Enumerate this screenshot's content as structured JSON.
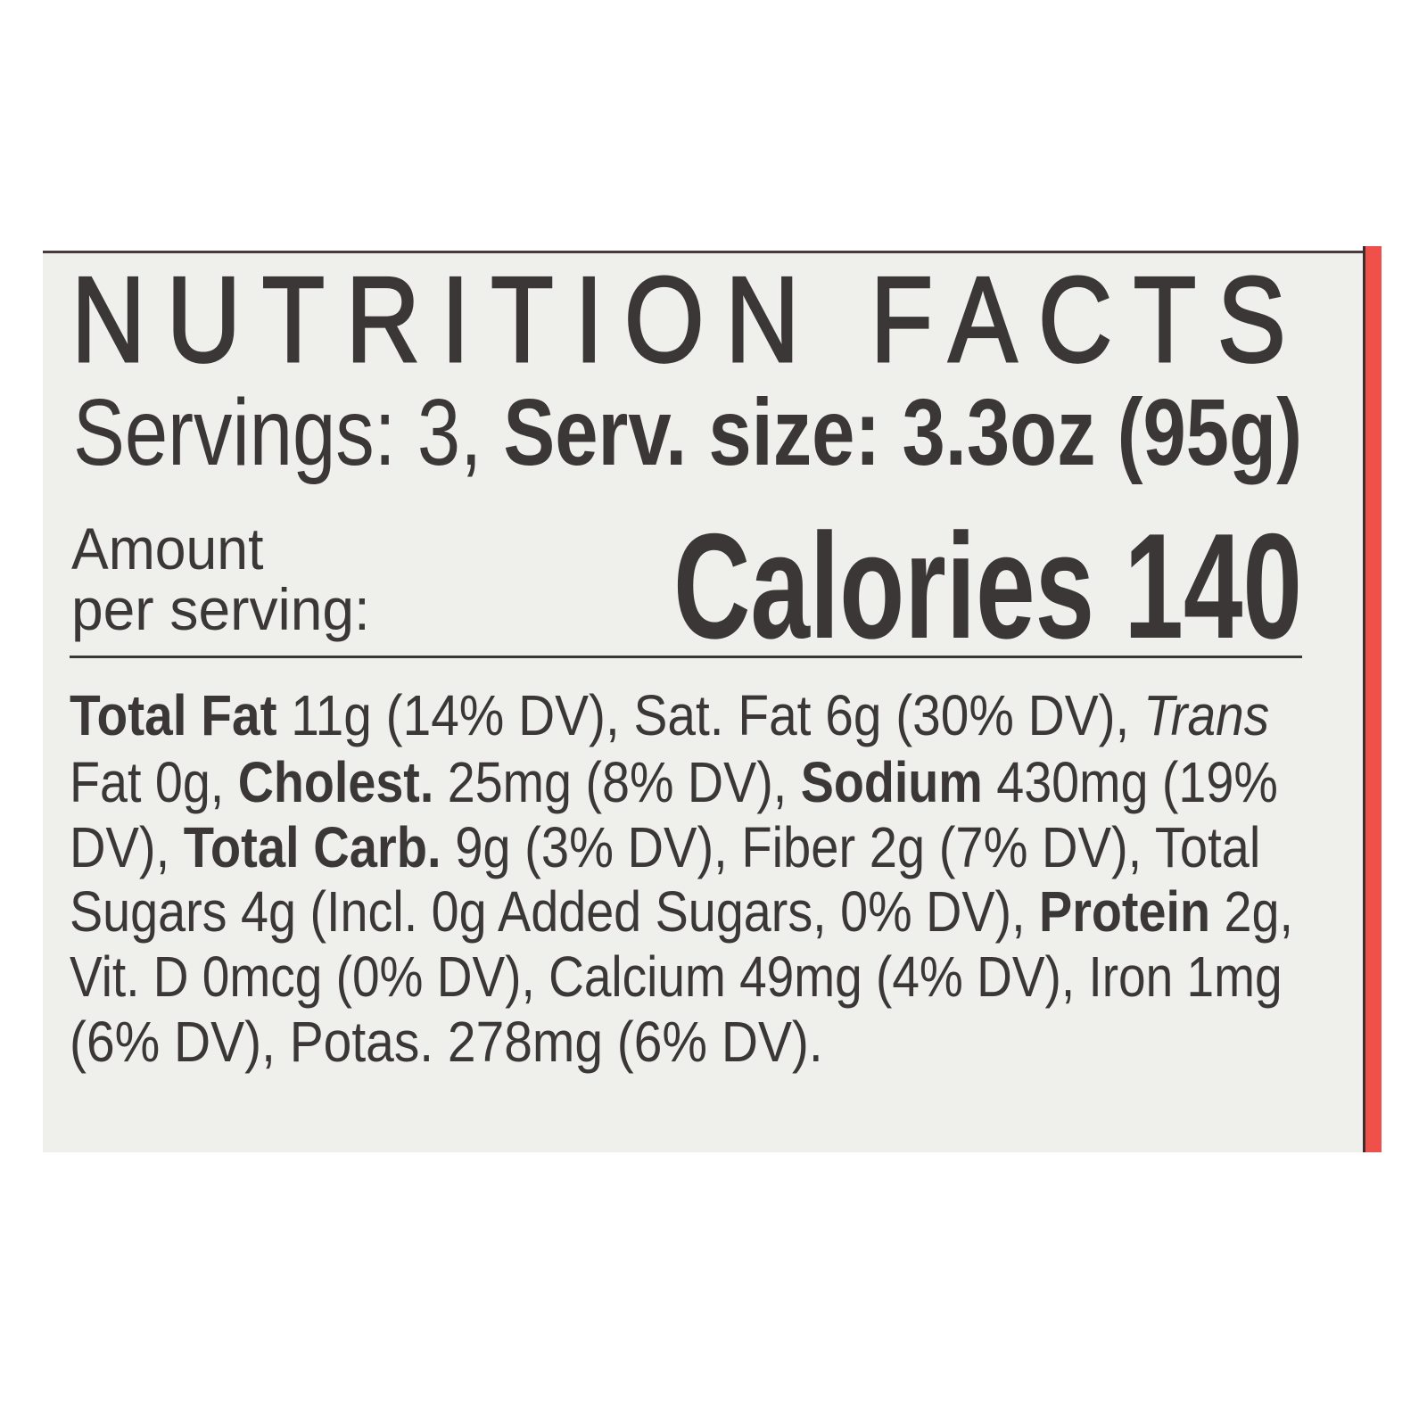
{
  "label": {
    "title": "NUTRITION FACTS",
    "servings_prefix": "Servings: 3, ",
    "serving_size": "Serv. size: 3.3oz (95g)",
    "amount_line1": "Amount",
    "amount_line2": "per serving:",
    "calories": "Calories 140",
    "body_lines": [
      [
        {
          "t": "Total Fat",
          "s": "b"
        },
        {
          "t": " 11g (14% DV), Sat. Fat 6g (30% DV), "
        },
        {
          "t": "Trans",
          "s": "i"
        }
      ],
      [
        {
          "t": "Fat 0g, "
        },
        {
          "t": "Cholest.",
          "s": "b"
        },
        {
          "t": " 25mg (8% DV), "
        },
        {
          "t": "Sodium",
          "s": "b"
        },
        {
          "t": " 430mg (19%"
        }
      ],
      [
        {
          "t": "DV), "
        },
        {
          "t": "Total Carb.",
          "s": "b"
        },
        {
          "t": " 9g (3% DV), Fiber 2g (7% DV), Total"
        }
      ],
      [
        {
          "t": "Sugars 4g (Incl. 0g Added Sugars, 0% DV), "
        },
        {
          "t": "Protein",
          "s": "b"
        },
        {
          "t": " 2g,"
        }
      ],
      [
        {
          "t": "Vit. D 0mcg (0% DV), Calcium 49mg (4% DV), Iron 1mg"
        }
      ],
      [
        {
          "t": "(6% DV), Potas. 278mg (6% DV)."
        }
      ]
    ]
  },
  "colors": {
    "text": "#3b3737",
    "panel": "#efefec",
    "accent_strip": "#f0504a"
  }
}
